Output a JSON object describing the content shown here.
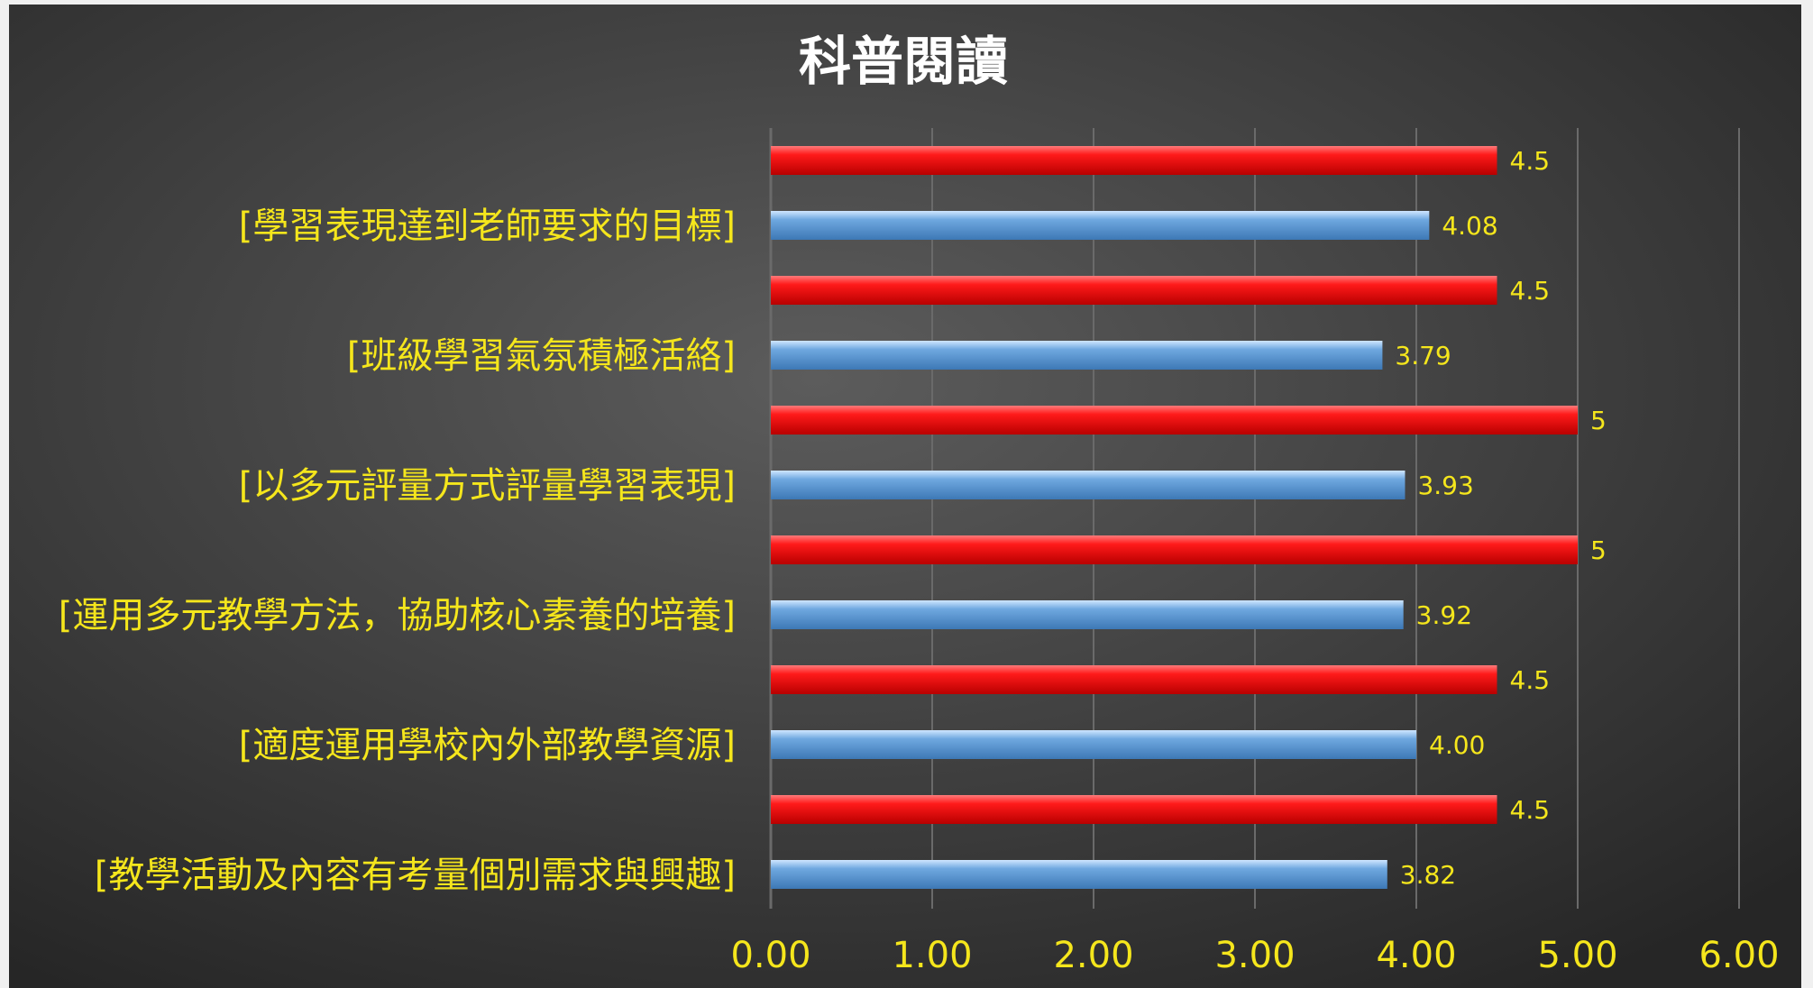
{
  "chart_data": {
    "type": "bar",
    "orientation": "horizontal",
    "title": "科普閱讀",
    "categories": [
      "[學習表現達到老師要求的目標]",
      "[班級學習氣氛積極活絡]",
      "[以多元評量方式評量學習表現]",
      "[運用多元教學方法，協助核心素養的培養]",
      "[適度運用學校內外部教學資源]",
      "[教學活動及內容有考量個別需求與興趣]"
    ],
    "series": [
      {
        "color": "#ff1a1a",
        "values": [
          4.5,
          4.5,
          5,
          5,
          4.5,
          4.5
        ],
        "labels": [
          "4.5",
          "4.5",
          "5",
          "5",
          "4.5",
          "4.5"
        ]
      },
      {
        "color": "#6fa8e0",
        "values": [
          4.08,
          3.79,
          3.93,
          3.92,
          4.0,
          3.82
        ],
        "labels": [
          "4.08",
          "3.79",
          "3.93",
          "3.92",
          "4.00",
          "3.82"
        ]
      }
    ],
    "xlim": [
      0,
      6
    ],
    "xticks": [
      "0.00",
      "1.00",
      "2.00",
      "3.00",
      "4.00",
      "5.00",
      "6.00"
    ],
    "grid": true,
    "legend": "none",
    "colors": {
      "background_light": "#5c5c5c",
      "background_dark": "#262626",
      "label_text": "#f5e61c",
      "title_text": "#ffffff",
      "grid": "#6a6a6a"
    }
  }
}
